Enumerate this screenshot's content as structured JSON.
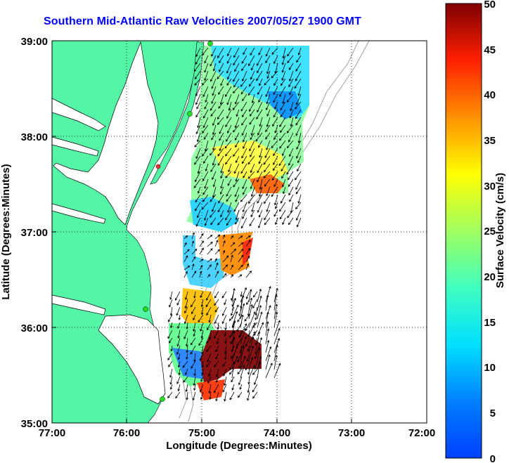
{
  "title": "Southern Mid-Atlantic Raw Velocities 2007/05/27 1900 GMT",
  "xaxis": {
    "label": "Longitude (Degrees:Minutes)",
    "ticks": [
      "77:00",
      "76:00",
      "75:00",
      "74:00",
      "73:00",
      "72:00"
    ]
  },
  "yaxis": {
    "label": "Latitude (Degrees:Minutes)",
    "ticks": [
      "39:00",
      "38:00",
      "37:00",
      "36:00",
      "35:00"
    ]
  },
  "colorbar": {
    "label": "Surface Velocity (cm/s)",
    "ticks": [
      "50",
      "45",
      "40",
      "35",
      "30",
      "25",
      "20",
      "15",
      "10",
      "5",
      "0"
    ]
  },
  "colors": {
    "land": "#55f5a8",
    "title": "#0000ff",
    "gridlines": "#000000",
    "bathymetry": "#a0a0a0"
  }
}
